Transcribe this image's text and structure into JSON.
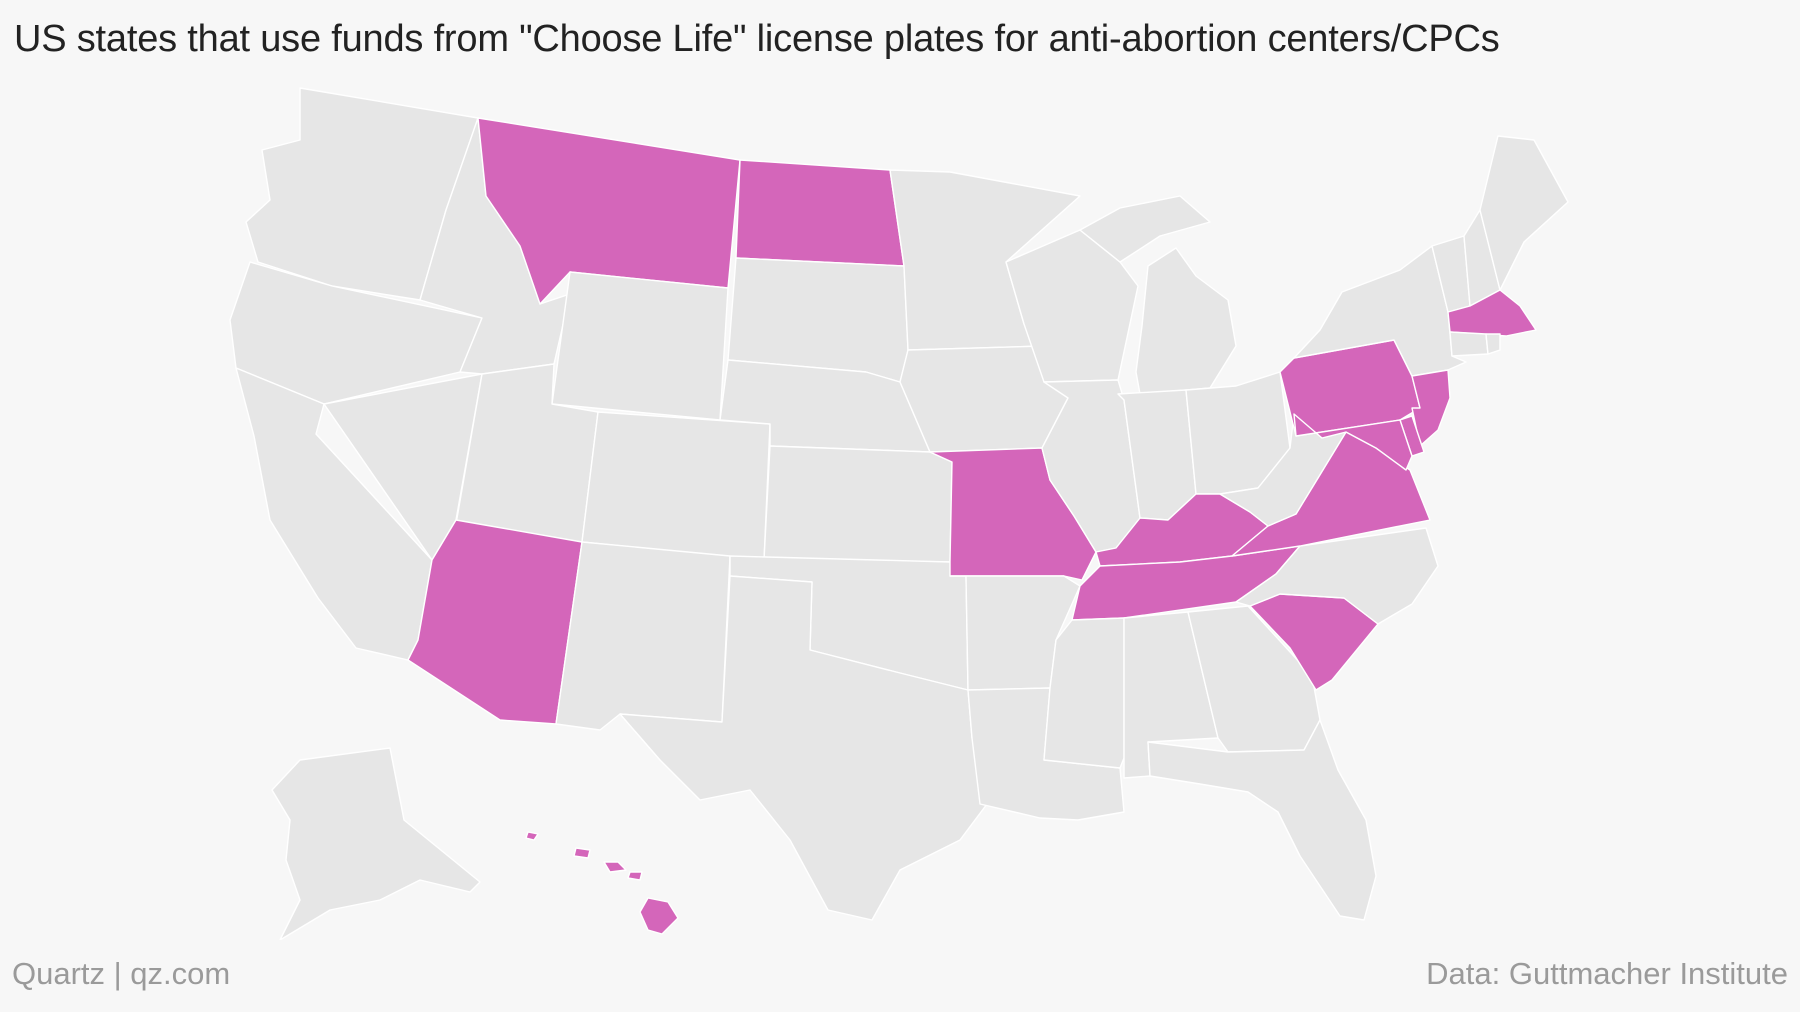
{
  "title": "US states that use funds from \"Choose Life\" license plates for anti-abortion centers/CPCs",
  "footer": {
    "brand": "Quartz | qz.com",
    "source": "Data: Guttmacher Institute"
  },
  "colors": {
    "highlight": "#d466ba",
    "other": "#e6e6e6",
    "background": "#f7f7f7"
  },
  "states": [
    {
      "code": "WA",
      "highlighted": false
    },
    {
      "code": "OR",
      "highlighted": false
    },
    {
      "code": "CA",
      "highlighted": false
    },
    {
      "code": "NV",
      "highlighted": false
    },
    {
      "code": "ID",
      "highlighted": false
    },
    {
      "code": "MT",
      "highlighted": true
    },
    {
      "code": "WY",
      "highlighted": false
    },
    {
      "code": "UT",
      "highlighted": false
    },
    {
      "code": "AZ",
      "highlighted": true
    },
    {
      "code": "CO",
      "highlighted": false
    },
    {
      "code": "NM",
      "highlighted": false
    },
    {
      "code": "ND",
      "highlighted": true
    },
    {
      "code": "SD",
      "highlighted": false
    },
    {
      "code": "NE",
      "highlighted": false
    },
    {
      "code": "KS",
      "highlighted": false
    },
    {
      "code": "OK",
      "highlighted": false
    },
    {
      "code": "TX",
      "highlighted": false
    },
    {
      "code": "MN",
      "highlighted": false
    },
    {
      "code": "IA",
      "highlighted": false
    },
    {
      "code": "MO",
      "highlighted": true
    },
    {
      "code": "AR",
      "highlighted": false
    },
    {
      "code": "LA",
      "highlighted": false
    },
    {
      "code": "WI",
      "highlighted": false
    },
    {
      "code": "IL",
      "highlighted": false
    },
    {
      "code": "MI",
      "highlighted": false
    },
    {
      "code": "IN",
      "highlighted": false
    },
    {
      "code": "OH",
      "highlighted": false
    },
    {
      "code": "KY",
      "highlighted": true
    },
    {
      "code": "TN",
      "highlighted": true
    },
    {
      "code": "MS",
      "highlighted": false
    },
    {
      "code": "AL",
      "highlighted": false
    },
    {
      "code": "GA",
      "highlighted": false
    },
    {
      "code": "FL",
      "highlighted": false
    },
    {
      "code": "SC",
      "highlighted": true
    },
    {
      "code": "NC",
      "highlighted": false
    },
    {
      "code": "VA",
      "highlighted": true
    },
    {
      "code": "WV",
      "highlighted": false
    },
    {
      "code": "PA",
      "highlighted": true
    },
    {
      "code": "NY",
      "highlighted": false
    },
    {
      "code": "VT",
      "highlighted": false
    },
    {
      "code": "NH",
      "highlighted": false
    },
    {
      "code": "ME",
      "highlighted": false
    },
    {
      "code": "MA",
      "highlighted": true
    },
    {
      "code": "CT",
      "highlighted": false
    },
    {
      "code": "RI",
      "highlighted": false
    },
    {
      "code": "NJ",
      "highlighted": true
    },
    {
      "code": "DE",
      "highlighted": true
    },
    {
      "code": "MD",
      "highlighted": true
    },
    {
      "code": "AK",
      "highlighted": false
    },
    {
      "code": "HI",
      "highlighted": true
    }
  ]
}
